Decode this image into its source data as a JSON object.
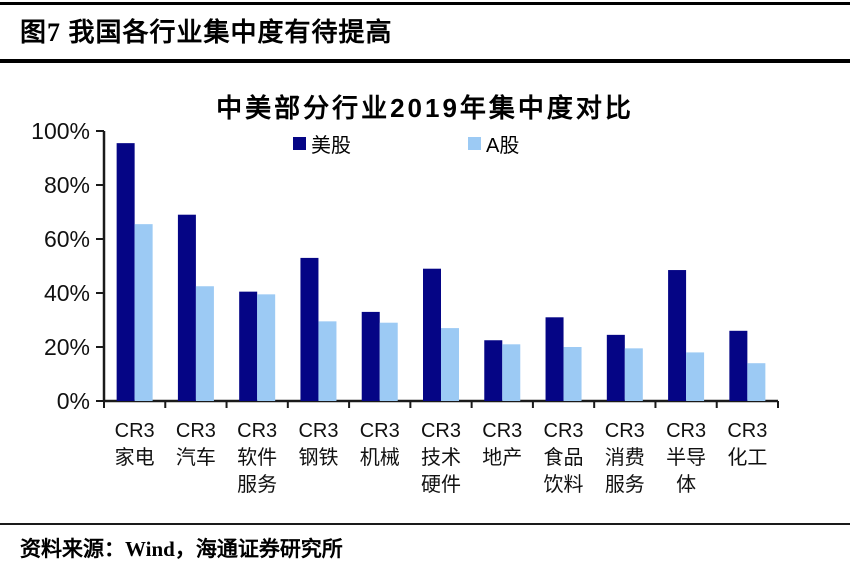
{
  "header": {
    "title": "图7  我国各行业集中度有待提高"
  },
  "chart_data": {
    "type": "bar",
    "title": "中美部分行业2019年集中度对比",
    "categories": [
      [
        "CR3",
        "家电"
      ],
      [
        "CR3",
        "汽车"
      ],
      [
        "CR3",
        "软件",
        "服务"
      ],
      [
        "CR3",
        "钢铁"
      ],
      [
        "CR3",
        "机械"
      ],
      [
        "CR3",
        "技术",
        "硬件"
      ],
      [
        "CR3",
        "地产"
      ],
      [
        "CR3",
        "食品",
        "饮料"
      ],
      [
        "CR3",
        "消费",
        "服务"
      ],
      [
        "CR3",
        "半导",
        "体"
      ],
      [
        "CR3",
        "化工"
      ]
    ],
    "series": [
      {
        "name": "美股",
        "color": "#050585",
        "values": [
          95.5,
          69,
          40.5,
          53,
          33,
          49,
          22.5,
          31,
          24.5,
          48.5,
          26
        ]
      },
      {
        "name": "A股",
        "color": "#9CCAF4",
        "values": [
          65.5,
          42.5,
          39.5,
          29.5,
          29,
          27,
          21,
          20,
          19.5,
          18,
          14
        ]
      }
    ],
    "xlabel": "",
    "ylabel": "",
    "ylim": [
      0,
      100
    ],
    "yticks": [
      0,
      20,
      40,
      60,
      80,
      100
    ],
    "ytick_suffix": "%",
    "grid": false,
    "legend_position": "top-center",
    "axis_color": "#1a1a1a"
  },
  "footer": {
    "source": "资料来源：Wind，海通证券研究所"
  }
}
